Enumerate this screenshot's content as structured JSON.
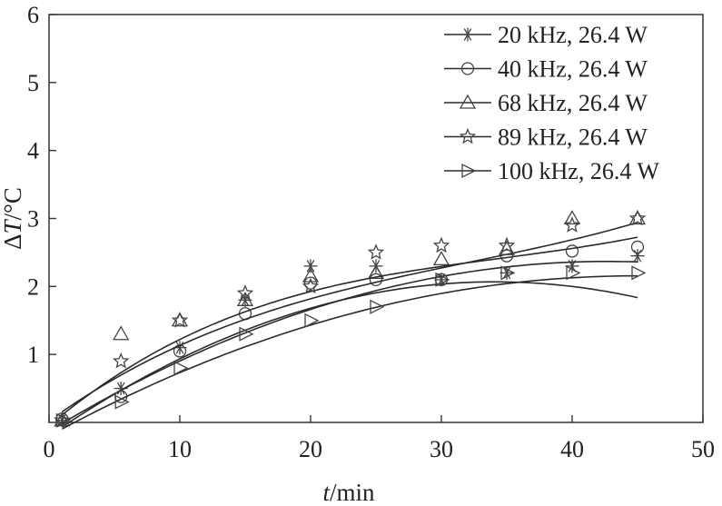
{
  "chart_data": {
    "type": "scatter",
    "xlabel": {
      "italic": "t",
      "rest": "/min"
    },
    "ylabel": {
      "pre": "Δ",
      "italic": "T",
      "rest": "/°C"
    },
    "xlim": [
      0,
      50
    ],
    "ylim": [
      0,
      6
    ],
    "xticks": [
      "0",
      "10",
      "20",
      "30",
      "40",
      "50"
    ],
    "yticks": [
      "1",
      "2",
      "3",
      "4",
      "5",
      "6"
    ],
    "grid": false,
    "legend_position": "top-right",
    "series": [
      {
        "name": "20 kHz, 26.4 W",
        "marker": "asterisk",
        "x": [
          1,
          5.5,
          10,
          15,
          20,
          25,
          30,
          35,
          40,
          45
        ],
        "y": [
          0.03,
          0.5,
          1.1,
          1.8,
          2.3,
          2.3,
          2.1,
          2.2,
          2.3,
          2.45
        ],
        "fit": [
          -0.2,
          0.133,
          -0.00195
        ]
      },
      {
        "name": "40 kHz, 26.4 W",
        "marker": "circle",
        "x": [
          1,
          5.5,
          10,
          15,
          20,
          25,
          30,
          35,
          40,
          45
        ],
        "y": [
          0.05,
          0.38,
          1.05,
          1.6,
          2.05,
          2.1,
          2.1,
          2.45,
          2.52,
          2.58
        ],
        "fit": [
          -0.13,
          0.117,
          -0.00137
        ]
      },
      {
        "name": "68 kHz, 26.4 W",
        "marker": "triangle",
        "x": [
          1,
          5.5,
          10,
          15,
          20,
          25,
          30,
          35,
          40,
          45
        ],
        "y": [
          0.03,
          1.3,
          1.5,
          1.8,
          2.15,
          2.2,
          2.4,
          2.55,
          3.0,
          3.0
        ],
        "fit": [
          0.02,
          0.139,
          -0.0031,
          3.23e-05
        ]
      },
      {
        "name": "89 kHz, 26.4 W",
        "marker": "star",
        "x": [
          1,
          5.5,
          10,
          15,
          20,
          25,
          30,
          35,
          40,
          45
        ],
        "y": [
          0.03,
          0.9,
          1.5,
          1.9,
          2.0,
          2.5,
          2.6,
          2.6,
          2.9,
          3.0
        ],
        "fit": [
          -0.05,
          0.163,
          -0.00398,
          3.84e-05
        ]
      },
      {
        "name": "100 kHz, 26.4 W",
        "marker": "triangle-right",
        "x": [
          1,
          5.5,
          10,
          15,
          20,
          25,
          30,
          35,
          40,
          45
        ],
        "y": [
          0.03,
          0.3,
          0.8,
          1.3,
          1.5,
          1.7,
          2.1,
          2.2,
          2.2,
          2.2
        ],
        "fit": [
          -0.2,
          0.105,
          -0.00117
        ]
      }
    ]
  }
}
